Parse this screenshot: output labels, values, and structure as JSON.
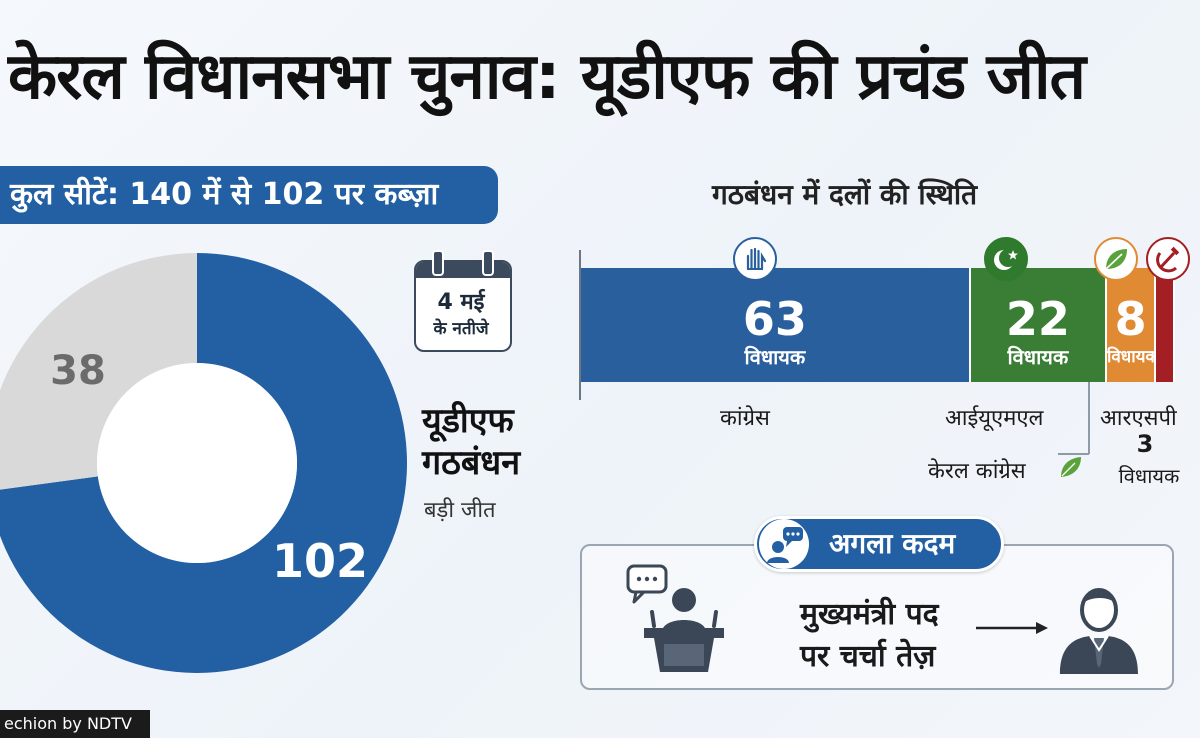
{
  "title": "केरल विधानसभा चुनाव: यूडीएफ की प्रचंड जीत",
  "total_seats_label": "कुल सीटें: 140 में से 102 पर कब्ज़ा",
  "calendar": {
    "line1": "4 मई",
    "line2": "के नतीजे"
  },
  "udf": {
    "line1": "यूडीएफ",
    "line2": "गठबंधन",
    "subtitle": "बड़ी जीत"
  },
  "alliance_title": "गठबंधन में दलों की स्थिति",
  "next_step": {
    "label": "अगला कदम",
    "line1": "मुख्यमंत्री पद",
    "line2": "पर चर्चा तेज़"
  },
  "footer": "echion by NDTV",
  "colors": {
    "udf_blue": "#2260a3",
    "others_gray": "#d9d9d9",
    "congress": "#2a5f9e",
    "iuml": "#3a7d34",
    "kerala_congress": "#e08a34",
    "rsp": "#a31f23"
  },
  "icons": {
    "congress": "hand-symbol-icon",
    "iuml": "crescent-star-icon",
    "kerala_congress": "leaf-icon",
    "rsp": "hammer-sickle-icon"
  },
  "chart_data": [
    {
      "type": "pie",
      "total": 140,
      "categories": [
        "यूडीएफ गठबंधन",
        ""
      ],
      "values": [
        102,
        38
      ]
    },
    {
      "type": "bar",
      "orientation": "horizontal-stacked",
      "title": "गठबंधन में दलों की स्थिति",
      "unit": "विधायक",
      "categories": [
        "कांग्रेस",
        "आईयूएमएल",
        "केरल कांग्रेस",
        "आरएसपी"
      ],
      "values": [
        63,
        22,
        8,
        3
      ],
      "value_labels": [
        "63",
        "22",
        "8",
        "3"
      ]
    }
  ]
}
